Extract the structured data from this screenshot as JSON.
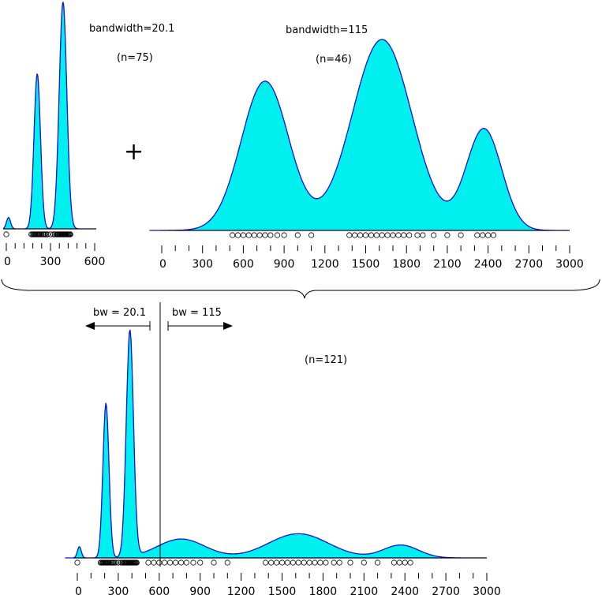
{
  "chart_data": [
    {
      "type": "area",
      "panel": "left-top",
      "annotation": "bandwidth=20.1",
      "n_label": "(n=75)",
      "x_ticks": [
        0,
        300,
        600
      ],
      "x_minor_step": 60,
      "xlim": [
        0,
        600
      ],
      "components": [
        {
          "center": 15,
          "weight": 0.6,
          "sd": 14
        },
        {
          "center": 210,
          "weight": 8.2,
          "sd": 22
        },
        {
          "center": 385,
          "weight": 12.0,
          "sd": 26
        }
      ],
      "observations": [
        0,
        170,
        178,
        185,
        190,
        195,
        200,
        205,
        210,
        215,
        220,
        225,
        230,
        240,
        250,
        255,
        262,
        270,
        280,
        300,
        320,
        330,
        340,
        345,
        350,
        355,
        360,
        365,
        370,
        375,
        380,
        385,
        390,
        395,
        400,
        405,
        410,
        415,
        420,
        425,
        430,
        435
      ]
    },
    {
      "type": "area",
      "panel": "right-top",
      "annotation": "bandwidth=115",
      "n_label": "(n=46)",
      "x_ticks": [
        0,
        300,
        600,
        900,
        1200,
        1500,
        1800,
        2100,
        2400,
        2700,
        3000
      ],
      "x_minor_step": 100,
      "xlim": [
        0,
        3000
      ],
      "components": [
        {
          "center": 760,
          "weight": 1.0,
          "sd": 175
        },
        {
          "center": 1620,
          "weight": 1.28,
          "sd": 220
        },
        {
          "center": 2370,
          "weight": 0.68,
          "sd": 130
        }
      ],
      "observations": [
        520,
        560,
        600,
        640,
        680,
        720,
        760,
        800,
        850,
        900,
        1000,
        1100,
        1380,
        1420,
        1460,
        1500,
        1540,
        1580,
        1620,
        1660,
        1700,
        1740,
        1780,
        1820,
        1880,
        1920,
        2000,
        2100,
        2200,
        2320,
        2360,
        2400,
        2440
      ]
    },
    {
      "type": "area",
      "panel": "bottom-combined",
      "n_label": "(n=121)",
      "bw_left_label": "bw = 20.1",
      "bw_right_label": "bw = 115",
      "split_at": 500,
      "x_ticks": [
        0,
        300,
        600,
        900,
        1200,
        1500,
        1800,
        2100,
        2400,
        2700,
        3000
      ],
      "x_minor_step": 100,
      "xlim": [
        0,
        3000
      ],
      "components": [
        {
          "center": 15,
          "weight": 0.6,
          "sd": 14
        },
        {
          "center": 210,
          "weight": 8.2,
          "sd": 22
        },
        {
          "center": 385,
          "weight": 12.0,
          "sd": 26
        },
        {
          "center": 760,
          "weight": 1.0,
          "sd": 175
        },
        {
          "center": 1620,
          "weight": 1.28,
          "sd": 220
        },
        {
          "center": 2370,
          "weight": 0.68,
          "sd": 130
        }
      ],
      "observations": [
        0,
        170,
        178,
        185,
        190,
        195,
        200,
        205,
        210,
        215,
        220,
        225,
        230,
        240,
        250,
        255,
        262,
        270,
        280,
        300,
        320,
        330,
        340,
        345,
        350,
        355,
        360,
        365,
        370,
        375,
        380,
        385,
        390,
        395,
        400,
        405,
        410,
        415,
        420,
        425,
        430,
        435,
        520,
        560,
        600,
        640,
        680,
        720,
        760,
        800,
        850,
        900,
        1000,
        1100,
        1380,
        1420,
        1460,
        1500,
        1540,
        1580,
        1620,
        1660,
        1700,
        1740,
        1780,
        1820,
        1880,
        1920,
        2000,
        2100,
        2200,
        2320,
        2360,
        2400,
        2440
      ]
    }
  ],
  "plus_sign": "+",
  "colors": {
    "fill": "#00f0f0",
    "stroke": "#1010d0"
  }
}
